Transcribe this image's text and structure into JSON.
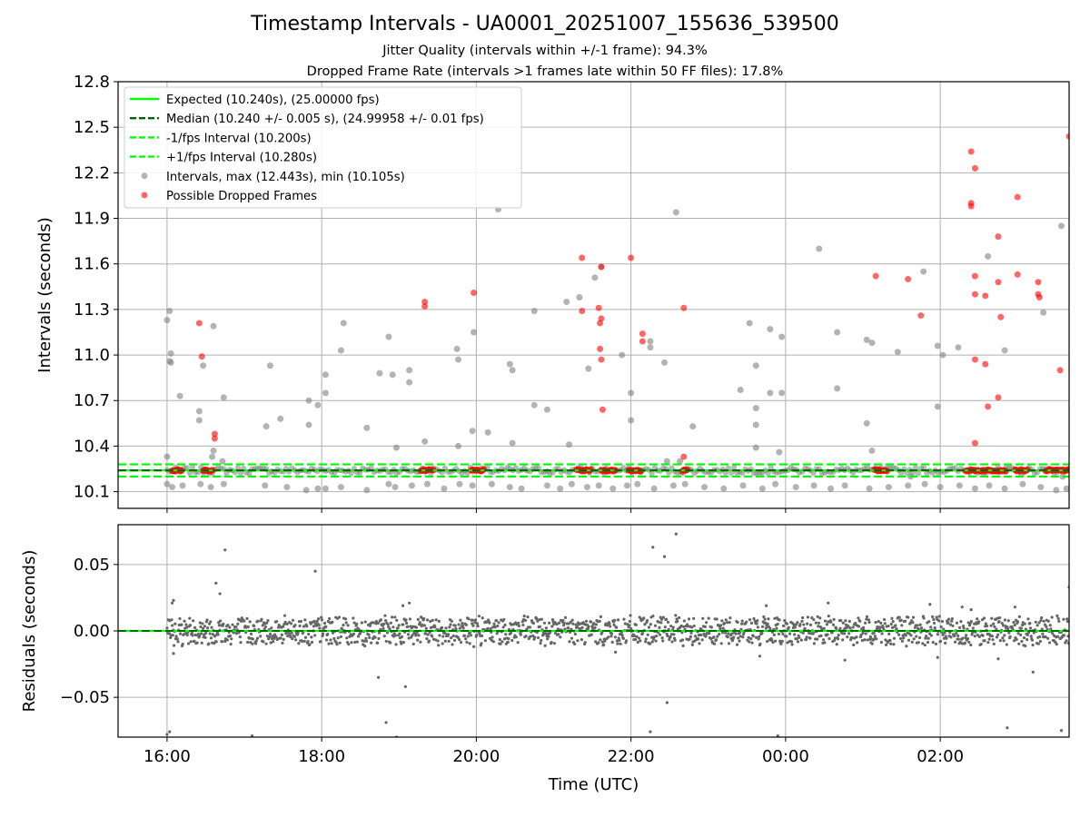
{
  "title": "Timestamp Intervals - UA0001_20251007_155636_539500",
  "subtitles": [
    "Jitter Quality (intervals within +/-1 frame): 94.3%",
    "Dropped Frame Rate (intervals >1 frames late within 50 FF files): 17.8%"
  ],
  "colors": {
    "expected": "#00ff00",
    "median": "#006400",
    "fps_bounds": "#00ff00",
    "intervals": "#808080",
    "dropped": "#ff0000",
    "grid": "#b0b0b0"
  },
  "chart_data": [
    {
      "type": "scatter",
      "panel": "intervals",
      "ylabel": "Intervals (seconds)",
      "ylim": [
        9.99,
        12.8
      ],
      "yticks": [
        "10.1",
        "10.4",
        "10.7",
        "11.0",
        "11.3",
        "11.6",
        "11.9",
        "12.2",
        "12.5",
        "12.8"
      ],
      "grid": true,
      "legend_placement": "top-left",
      "reference_lines": [
        {
          "name": "Expected (10.240s), (25.00000 fps)",
          "y": 10.24,
          "style": "solid"
        },
        {
          "name": "Median (10.240 +/- 0.005 s), (24.99958 +/- 0.01 fps)",
          "y": 10.24,
          "style": "dashed"
        },
        {
          "name": "-1/fps Interval (10.200s)",
          "y": 10.2,
          "style": "dashed"
        },
        {
          "name": "+1/fps Interval (10.280s)",
          "y": 10.28,
          "style": "dashed"
        }
      ],
      "series": [
        {
          "name": "Intervals, max (12.443s), min (10.105s)",
          "points": [
            [
              "16:00",
              11.23
            ],
            [
              "16:02",
              11.29
            ],
            [
              "16:03",
              11.01
            ],
            [
              "16:02",
              10.96
            ],
            [
              "16:03",
              10.95
            ],
            [
              "16:00",
              10.33
            ],
            [
              "16:10",
              10.73
            ],
            [
              "16:25",
              10.63
            ],
            [
              "16:25",
              10.57
            ],
            [
              "16:28",
              10.93
            ],
            [
              "16:36",
              11.19
            ],
            [
              "16:36",
              10.37
            ],
            [
              "16:35",
              10.33
            ],
            [
              "16:44",
              10.72
            ],
            [
              "16:43",
              10.3
            ],
            [
              "17:17",
              10.53
            ],
            [
              "17:20",
              10.93
            ],
            [
              "17:28",
              10.58
            ],
            [
              "17:50",
              10.7
            ],
            [
              "17:50",
              10.54
            ],
            [
              "17:57",
              10.67
            ],
            [
              "18:03",
              10.87
            ],
            [
              "18:03",
              10.75
            ],
            [
              "18:15",
              11.03
            ],
            [
              "18:17",
              11.21
            ],
            [
              "18:35",
              10.52
            ],
            [
              "18:45",
              10.88
            ],
            [
              "18:52",
              11.12
            ],
            [
              "18:55",
              10.87
            ],
            [
              "18:58",
              10.39
            ],
            [
              "19:08",
              10.9
            ],
            [
              "19:08",
              10.82
            ],
            [
              "19:20",
              10.43
            ],
            [
              "19:45",
              11.04
            ],
            [
              "19:46",
              10.97
            ],
            [
              "19:46",
              10.4
            ],
            [
              "19:57",
              10.5
            ],
            [
              "19:58",
              11.15
            ],
            [
              "20:09",
              10.49
            ],
            [
              "20:17",
              11.96
            ],
            [
              "20:26",
              10.94
            ],
            [
              "20:28",
              10.9
            ],
            [
              "20:28",
              10.42
            ],
            [
              "20:45",
              11.29
            ],
            [
              "20:45",
              10.67
            ],
            [
              "20:55",
              10.64
            ],
            [
              "21:10",
              11.35
            ],
            [
              "21:12",
              10.41
            ],
            [
              "21:20",
              11.38
            ],
            [
              "21:27",
              10.91
            ],
            [
              "21:32",
              11.51
            ],
            [
              "21:37",
              11.58
            ],
            [
              "21:53",
              11.0
            ],
            [
              "22:00",
              10.75
            ],
            [
              "22:00",
              10.57
            ],
            [
              "22:15",
              11.09
            ],
            [
              "22:15",
              11.05
            ],
            [
              "22:26",
              10.95
            ],
            [
              "22:28",
              10.3
            ],
            [
              "22:35",
              11.94
            ],
            [
              "22:38",
              10.3
            ],
            [
              "22:48",
              10.53
            ],
            [
              "23:25",
              10.77
            ],
            [
              "23:32",
              11.21
            ],
            [
              "23:37",
              10.93
            ],
            [
              "23:37",
              10.65
            ],
            [
              "23:37",
              10.54
            ],
            [
              "23:37",
              10.39
            ],
            [
              "23:48",
              11.17
            ],
            [
              "23:48",
              10.75
            ],
            [
              "23:57",
              11.12
            ],
            [
              "23:57",
              10.75
            ],
            [
              "23:55",
              10.36
            ],
            [
              "00:26",
              11.7
            ],
            [
              "00:40",
              11.15
            ],
            [
              "00:40",
              10.78
            ],
            [
              "01:03",
              11.1
            ],
            [
              "01:07",
              11.08
            ],
            [
              "01:03",
              10.55
            ],
            [
              "01:07",
              10.37
            ],
            [
              "01:27",
              11.02
            ],
            [
              "01:37",
              10.2
            ],
            [
              "01:47",
              11.55
            ],
            [
              "01:58",
              11.06
            ],
            [
              "01:58",
              10.66
            ],
            [
              "02:02",
              11.0
            ],
            [
              "02:14",
              11.05
            ],
            [
              "02:37",
              11.65
            ],
            [
              "02:50",
              11.03
            ],
            [
              "03:20",
              11.28
            ],
            [
              "03:34",
              11.85
            ],
            [
              "03:35",
              10.2
            ],
            [
              "16:00",
              10.15
            ],
            [
              "16:04",
              10.13
            ],
            [
              "16:12",
              10.14
            ],
            [
              "16:26",
              10.15
            ],
            [
              "16:34",
              10.13
            ],
            [
              "16:44",
              10.15
            ],
            [
              "17:16",
              10.14
            ],
            [
              "17:33",
              10.13
            ],
            [
              "17:48",
              10.11
            ],
            [
              "17:57",
              10.12
            ],
            [
              "18:03",
              10.12
            ],
            [
              "18:15",
              10.13
            ],
            [
              "18:35",
              10.11
            ],
            [
              "18:52",
              10.15
            ],
            [
              "18:57",
              10.13
            ],
            [
              "19:10",
              10.14
            ],
            [
              "19:22",
              10.15
            ],
            [
              "19:35",
              10.12
            ],
            [
              "19:47",
              10.15
            ],
            [
              "19:57",
              10.14
            ],
            [
              "20:12",
              10.15
            ],
            [
              "20:26",
              10.13
            ],
            [
              "20:35",
              10.12
            ],
            [
              "20:55",
              10.14
            ],
            [
              "21:05",
              10.12
            ],
            [
              "21:14",
              10.15
            ],
            [
              "21:26",
              10.13
            ],
            [
              "21:35",
              10.14
            ],
            [
              "21:46",
              10.12
            ],
            [
              "21:57",
              10.14
            ],
            [
              "22:05",
              10.15
            ],
            [
              "22:18",
              10.12
            ],
            [
              "22:33",
              10.14
            ],
            [
              "22:42",
              10.15
            ],
            [
              "22:57",
              10.13
            ],
            [
              "23:12",
              10.12
            ],
            [
              "23:27",
              10.14
            ],
            [
              "23:42",
              10.12
            ],
            [
              "23:52",
              10.15
            ],
            [
              "00:08",
              10.13
            ],
            [
              "00:22",
              10.14
            ],
            [
              "00:35",
              10.12
            ],
            [
              "00:46",
              10.14
            ],
            [
              "01:05",
              10.12
            ],
            [
              "01:20",
              10.13
            ],
            [
              "01:35",
              10.14
            ],
            [
              "01:48",
              10.15
            ],
            [
              "02:00",
              10.13
            ],
            [
              "02:15",
              10.14
            ],
            [
              "02:27",
              10.12
            ],
            [
              "02:38",
              10.14
            ],
            [
              "02:50",
              10.12
            ],
            [
              "03:04",
              10.15
            ],
            [
              "03:18",
              10.13
            ],
            [
              "03:30",
              10.11
            ],
            [
              "03:38",
              10.12
            ]
          ]
        },
        {
          "name": "Possible Dropped Frames",
          "points": [
            [
              "16:25",
              11.21
            ],
            [
              "16:27",
              10.99
            ],
            [
              "16:37",
              10.48
            ],
            [
              "16:37",
              10.45
            ],
            [
              "19:20",
              11.35
            ],
            [
              "19:20",
              11.32
            ],
            [
              "19:58",
              11.41
            ],
            [
              "21:22",
              11.64
            ],
            [
              "21:22",
              11.29
            ],
            [
              "21:35",
              11.31
            ],
            [
              "21:37",
              11.58
            ],
            [
              "21:37",
              11.24
            ],
            [
              "21:36",
              11.21
            ],
            [
              "21:36",
              11.04
            ],
            [
              "21:37",
              10.97
            ],
            [
              "21:38",
              10.64
            ],
            [
              "22:00",
              11.64
            ],
            [
              "22:09",
              11.14
            ],
            [
              "22:09",
              11.09
            ],
            [
              "22:41",
              11.31
            ],
            [
              "22:41",
              10.33
            ],
            [
              "01:10",
              11.52
            ],
            [
              "01:35",
              11.5
            ],
            [
              "01:45",
              11.26
            ],
            [
              "02:24",
              12.34
            ],
            [
              "02:27",
              12.23
            ],
            [
              "02:24",
              12.0
            ],
            [
              "02:24",
              11.98
            ],
            [
              "02:27",
              11.52
            ],
            [
              "02:27",
              11.4
            ],
            [
              "02:27",
              10.97
            ],
            [
              "02:27",
              10.42
            ],
            [
              "02:35",
              11.39
            ],
            [
              "02:35",
              10.94
            ],
            [
              "02:37",
              10.66
            ],
            [
              "02:45",
              11.78
            ],
            [
              "02:45",
              11.48
            ],
            [
              "02:47",
              11.25
            ],
            [
              "02:45",
              10.72
            ],
            [
              "03:00",
              12.04
            ],
            [
              "03:00",
              11.53
            ],
            [
              "03:16",
              11.48
            ],
            [
              "03:16",
              11.4
            ],
            [
              "03:17",
              11.38
            ],
            [
              "03:33",
              10.9
            ],
            [
              "03:40",
              12.44
            ],
            [
              "16:06",
              10.24
            ],
            [
              "16:30",
              10.24
            ],
            [
              "19:20",
              10.24
            ],
            [
              "20:00",
              10.24
            ],
            [
              "21:22",
              10.24
            ],
            [
              "21:40",
              10.24
            ],
            [
              "22:00",
              10.24
            ],
            [
              "22:42",
              10.24
            ],
            [
              "01:12",
              10.24
            ],
            [
              "02:27",
              10.24
            ],
            [
              "02:45",
              10.24
            ],
            [
              "03:02",
              10.24
            ],
            [
              "03:28",
              10.24
            ]
          ]
        }
      ]
    },
    {
      "type": "scatter",
      "panel": "residuals",
      "xlabel": "Time (UTC)",
      "ylabel": "Residuals (seconds)",
      "ylim": [
        -0.08,
        0.08
      ],
      "yticks": [
        "−0.05",
        "0.00",
        "0.05"
      ],
      "xticks": [
        "16:00",
        "18:00",
        "20:00",
        "22:00",
        "00:00",
        "02:00"
      ],
      "xrange": [
        "15:22",
        "03:40"
      ],
      "grid": true,
      "residual_band": [
        -0.01,
        0.01
      ],
      "series": [
        {
          "name": "",
          "points": [
            [
              "16:04",
              0.021
            ],
            [
              "16:05",
              0.023
            ],
            [
              "16:38",
              0.036
            ],
            [
              "16:41",
              0.028
            ],
            [
              "16:45",
              0.061
            ],
            [
              "17:55",
              0.045
            ],
            [
              "19:03",
              0.019
            ],
            [
              "19:08",
              0.021
            ],
            [
              "22:17",
              0.063
            ],
            [
              "22:26",
              0.056
            ],
            [
              "22:35",
              0.073
            ],
            [
              "23:45",
              0.019
            ],
            [
              "00:33",
              0.021
            ],
            [
              "01:52",
              0.02
            ],
            [
              "02:17",
              0.018
            ],
            [
              "02:24",
              0.016
            ],
            [
              "02:58",
              0.018
            ],
            [
              "03:40",
              0.033
            ],
            [
              "16:05",
              -0.017
            ],
            [
              "18:44",
              -0.035
            ],
            [
              "18:50",
              -0.069
            ],
            [
              "19:05",
              -0.042
            ],
            [
              "21:48",
              -0.016
            ],
            [
              "22:28",
              -0.054
            ],
            [
              "23:40",
              -0.019
            ],
            [
              "00:46",
              -0.022
            ],
            [
              "01:58",
              -0.02
            ],
            [
              "02:45",
              -0.021
            ],
            [
              "03:12",
              -0.031
            ],
            [
              "02:52",
              -0.073
            ],
            [
              "16:02",
              -0.076
            ],
            [
              "16:00",
              -0.078
            ],
            [
              "17:06",
              -0.079
            ],
            [
              "18:58",
              -0.08
            ],
            [
              "22:15",
              -0.076
            ],
            [
              "23:54",
              -0.079
            ],
            [
              "03:34",
              -0.075
            ]
          ]
        }
      ]
    }
  ]
}
